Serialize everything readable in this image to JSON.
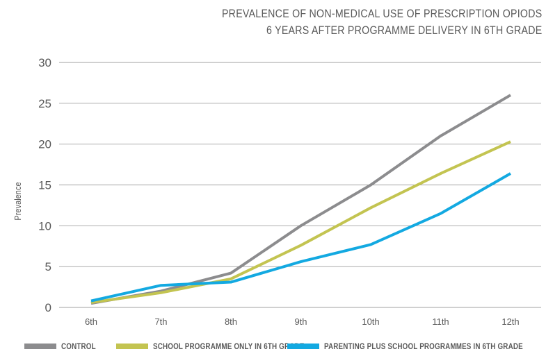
{
  "chart_data": {
    "type": "line",
    "title_lines": [
      "PREVALENCE OF NON-MEDICAL USE OF PRESCRIPTION OPIODS",
      "6 YEARS AFTER PROGRAMME DELIVERY IN 6TH GRADE"
    ],
    "ylabel": "Prevalence",
    "xlabel": "",
    "categories": [
      "6th",
      "7th",
      "8th",
      "9th",
      "10th",
      "11th",
      "12th"
    ],
    "ylim": [
      0,
      30
    ],
    "yticks": [
      0,
      5,
      10,
      15,
      20,
      25,
      30
    ],
    "grid": true,
    "legend_position": "bottom",
    "series": [
      {
        "name": "CONTROL",
        "color": "#8c8c8e",
        "values": [
          0.5,
          2.0,
          4.2,
          10.0,
          15.0,
          21.0,
          26.0
        ]
      },
      {
        "name": "SCHOOL PROGRAMME ONLY IN 6TH GRADE",
        "color": "#c3c451",
        "values": [
          0.6,
          1.8,
          3.5,
          7.6,
          12.2,
          16.4,
          20.3
        ]
      },
      {
        "name": "PARENTING PLUS SCHOOL PROGRAMMES IN 6TH GRADE",
        "color": "#13a9e1",
        "values": [
          0.8,
          2.7,
          3.1,
          5.6,
          7.7,
          11.5,
          16.4
        ]
      }
    ]
  }
}
